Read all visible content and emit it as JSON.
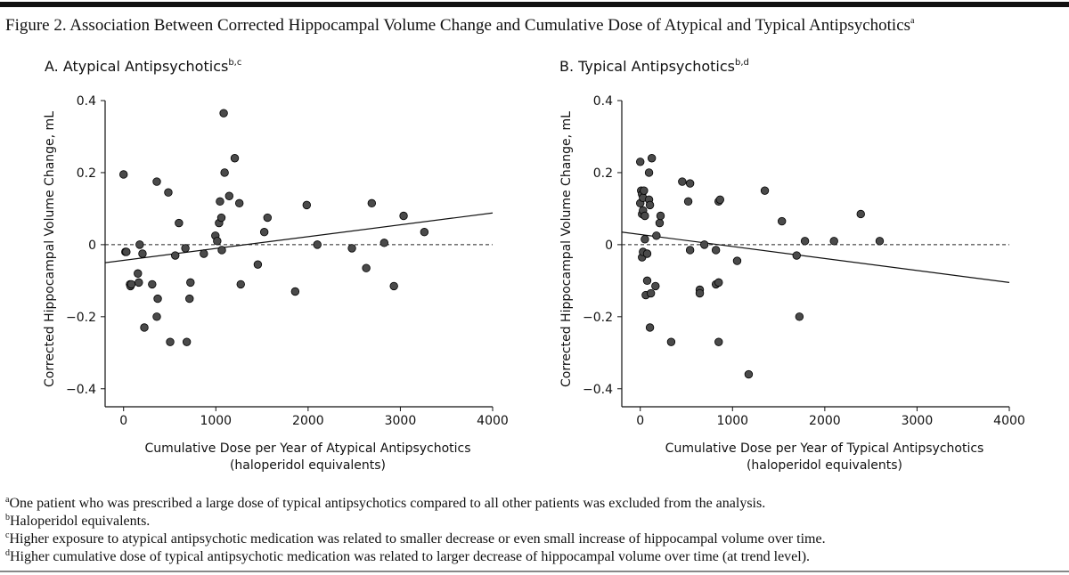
{
  "figure": {
    "title": "Figure 2. Association Between Corrected Hippocampal Volume Change and Cumulative Dose of Atypical and Typical Antipsychotics",
    "title_superscript": "a",
    "footnotes": [
      {
        "mark": "a",
        "text": "One patient who was prescribed a large dose of typical antipsychotics compared to all other patients was excluded from the analysis."
      },
      {
        "mark": "b",
        "text": "Haloperidol equivalents."
      },
      {
        "mark": "c",
        "text": "Higher exposure to atypical antipsychotic medication was related to smaller decrease or even small increase of hippocampal volume over time."
      },
      {
        "mark": "d",
        "text": "Higher cumulative dose of typical antipsychotic medication was related to larger decrease of hippocampal volume over time (at trend level)."
      }
    ]
  },
  "chart_data": [
    {
      "type": "scatter",
      "title": "A. Atypical Antipsychotics",
      "title_superscript": "b,c",
      "xlabel": [
        "Cumulative Dose per Year of Atypical Antipsychotics",
        "(haloperidol equivalents)"
      ],
      "ylabel": "Corrected Hippocampal Volume Change, mL",
      "xlim": [
        -200,
        4000
      ],
      "ylim": [
        -0.45,
        0.4
      ],
      "xticks": [
        0,
        1000,
        2000,
        3000,
        4000
      ],
      "yticks": [
        {
          "value": -0.4,
          "label": "−0.4"
        },
        {
          "value": -0.2,
          "label": "−0.2"
        },
        0,
        0.2,
        0.4
      ],
      "color": "#4a4a4a",
      "reference_line": 0,
      "trend_line": {
        "x": [
          -200,
          4000
        ],
        "y": [
          -0.05,
          0.088
        ]
      },
      "x": [
        0,
        20,
        30,
        70,
        75,
        85,
        155,
        165,
        175,
        205,
        225,
        310,
        360,
        360,
        370,
        485,
        505,
        560,
        600,
        670,
        685,
        715,
        725,
        870,
        995,
        1015,
        1035,
        1045,
        1060,
        1065,
        1085,
        1095,
        1145,
        1205,
        1255,
        1270,
        1455,
        1525,
        1560,
        1860,
        1985,
        2100,
        2475,
        2630,
        2690,
        2825,
        2930,
        3035,
        3260
      ],
      "y": [
        0.195,
        -0.02,
        -0.02,
        -0.11,
        -0.115,
        -0.11,
        -0.08,
        -0.105,
        0,
        -0.025,
        -0.23,
        -0.11,
        0.175,
        -0.2,
        -0.15,
        0.145,
        -0.27,
        -0.03,
        0.06,
        -0.01,
        -0.27,
        -0.15,
        -0.105,
        -0.025,
        0.025,
        0.01,
        0.06,
        0.12,
        0.075,
        -0.015,
        0.365,
        0.2,
        0.135,
        0.24,
        0.115,
        -0.11,
        -0.055,
        0.035,
        0.075,
        -0.13,
        0.11,
        0,
        -0.01,
        -0.065,
        0.115,
        0.005,
        -0.115,
        0.08,
        0.035
      ]
    },
    {
      "type": "scatter",
      "title": "B. Typical Antipsychotics",
      "title_superscript": "b,d",
      "xlabel": [
        "Cumulative Dose per Year of Typical Antipsychotics",
        "(haloperidol equivalents)"
      ],
      "ylabel": "Corrected Hippocampal Volume Change, mL",
      "xlim": [
        -200,
        4000
      ],
      "ylim": [
        -0.45,
        0.4
      ],
      "xticks": [
        0,
        1000,
        2000,
        3000,
        4000
      ],
      "yticks": [
        {
          "value": -0.4,
          "label": "−0.4"
        },
        {
          "value": -0.2,
          "label": "−0.2"
        },
        0,
        0.2,
        0.4
      ],
      "color": "#4a4a4a",
      "reference_line": 0,
      "trend_line": {
        "x": [
          -200,
          4000
        ],
        "y": [
          0.035,
          -0.105
        ]
      },
      "x": [
        0,
        0,
        10,
        20,
        20,
        20,
        30,
        30,
        30,
        40,
        50,
        50,
        60,
        75,
        75,
        95,
        95,
        105,
        105,
        115,
        125,
        165,
        175,
        210,
        220,
        335,
        455,
        520,
        540,
        540,
        645,
        645,
        695,
        820,
        820,
        850,
        850,
        865,
        850,
        1050,
        1175,
        1350,
        1535,
        1695,
        1725,
        1785,
        2100,
        2390,
        2595
      ],
      "y": [
        0.23,
        0.115,
        0.15,
        0.14,
        0.085,
        -0.035,
        0.13,
        0.095,
        -0.02,
        0.15,
        0.08,
        0.015,
        -0.14,
        -0.1,
        -0.025,
        0.125,
        0.2,
        0.11,
        -0.23,
        -0.135,
        0.24,
        -0.115,
        0.025,
        0.06,
        0.08,
        -0.27,
        0.175,
        0.12,
        0.17,
        -0.015,
        -0.125,
        -0.135,
        0,
        -0.015,
        -0.11,
        -0.105,
        0.12,
        0.125,
        -0.27,
        -0.045,
        -0.36,
        0.15,
        0.065,
        -0.03,
        -0.2,
        0.01,
        0.01,
        0.085,
        0.01
      ]
    }
  ]
}
